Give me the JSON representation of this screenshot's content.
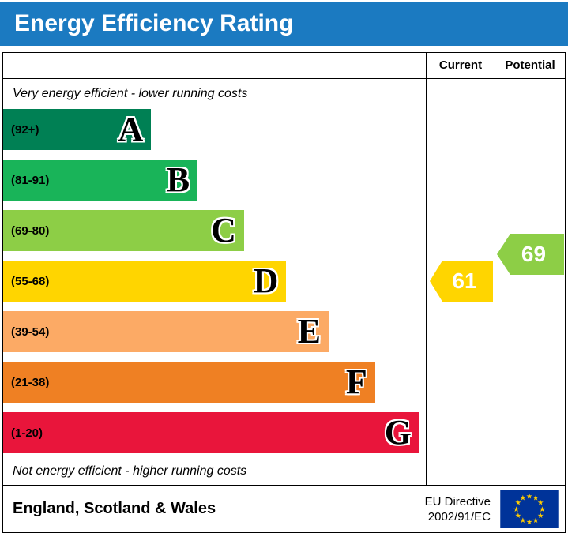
{
  "title": "Energy Efficiency Rating",
  "colors": {
    "title_bg": "#1b7ac1",
    "title_text": "#ffffff",
    "border": "#000000",
    "eu_flag_blue": "#003399",
    "eu_flag_star": "#ffcc00"
  },
  "columns": {
    "current": "Current",
    "potential": "Potential"
  },
  "captions": {
    "top": "Very energy efficient - lower running costs",
    "bottom": "Not energy efficient - higher running costs"
  },
  "chart_data": {
    "type": "bar",
    "title": "Energy Efficiency Rating",
    "bands": [
      {
        "letter": "A",
        "range_label": "(92+)",
        "color": "#008054",
        "width_pct": 35
      },
      {
        "letter": "B",
        "range_label": "(81-91)",
        "color": "#19b459",
        "width_pct": 46
      },
      {
        "letter": "C",
        "range_label": "(69-80)",
        "color": "#8dce46",
        "width_pct": 57
      },
      {
        "letter": "D",
        "range_label": "(55-68)",
        "color": "#ffd500",
        "width_pct": 67
      },
      {
        "letter": "E",
        "range_label": "(39-54)",
        "color": "#fcaa65",
        "width_pct": 77
      },
      {
        "letter": "F",
        "range_label": "(21-38)",
        "color": "#ef8023",
        "width_pct": 88
      },
      {
        "letter": "G",
        "range_label": "(1-20)",
        "color": "#e9153b",
        "width_pct": 98.5
      }
    ],
    "current": {
      "value": 61,
      "band": "D",
      "color": "#ffd500"
    },
    "potential": {
      "value": 69,
      "band": "C",
      "color": "#8dce46"
    }
  },
  "footer": {
    "region": "England, Scotland & Wales",
    "directive_line1": "EU Directive",
    "directive_line2": "2002/91/EC"
  }
}
